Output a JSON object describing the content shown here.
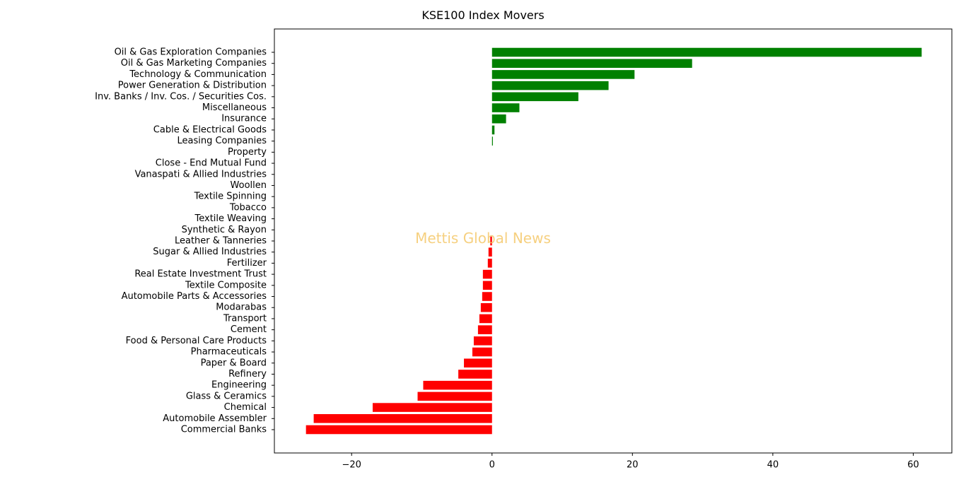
{
  "chart_data": {
    "type": "bar",
    "orientation": "horizontal",
    "title": "KSE100 Index Movers",
    "xlabel": "",
    "ylabel": "",
    "xlim": [
      -31,
      65.5
    ],
    "xticks": [
      -20,
      0,
      20,
      40,
      60
    ],
    "xtick_labels": [
      "−20",
      "0",
      "20",
      "40",
      "60"
    ],
    "watermark": "Mettis Global News",
    "positive_color": "#008000",
    "negative_color": "#ff0000",
    "watermark_color": "#f5c86a",
    "grid": false,
    "categories": [
      "Oil & Gas Exploration Companies",
      "Oil & Gas Marketing Companies",
      "Technology & Communication",
      "Power Generation & Distribution",
      "Inv. Banks / Inv. Cos. / Securities Cos.",
      "Miscellaneous",
      "Insurance",
      "Cable & Electrical Goods",
      "Leasing Companies",
      "Property",
      "Close - End Mutual Fund",
      "Vanaspati & Allied Industries",
      "Woollen",
      "Textile Spinning",
      "Tobacco",
      "Textile Weaving",
      "Synthetic & Rayon",
      "Leather & Tanneries",
      "Sugar & Allied Industries",
      "Fertilizer",
      "Real Estate Investment Trust",
      "Textile Composite",
      "Automobile Parts & Accessories",
      "Modarabas",
      "Transport",
      "Cement",
      "Food & Personal Care Products",
      "Pharmaceuticals",
      "Paper & Board",
      "Refinery",
      "Engineering",
      "Glass & Ceramics",
      "Chemical",
      "Automobile Assembler",
      "Commercial Banks"
    ],
    "values": [
      61.2,
      28.5,
      20.3,
      16.6,
      12.3,
      3.9,
      2.0,
      0.35,
      0.12,
      0,
      0,
      0,
      0,
      0,
      0,
      0,
      0,
      -0.25,
      -0.5,
      -0.6,
      -1.3,
      -1.3,
      -1.4,
      -1.6,
      -1.8,
      -2.0,
      -2.6,
      -2.8,
      -4.0,
      -4.8,
      -9.8,
      -10.6,
      -17.0,
      -25.4,
      -26.5
    ]
  }
}
